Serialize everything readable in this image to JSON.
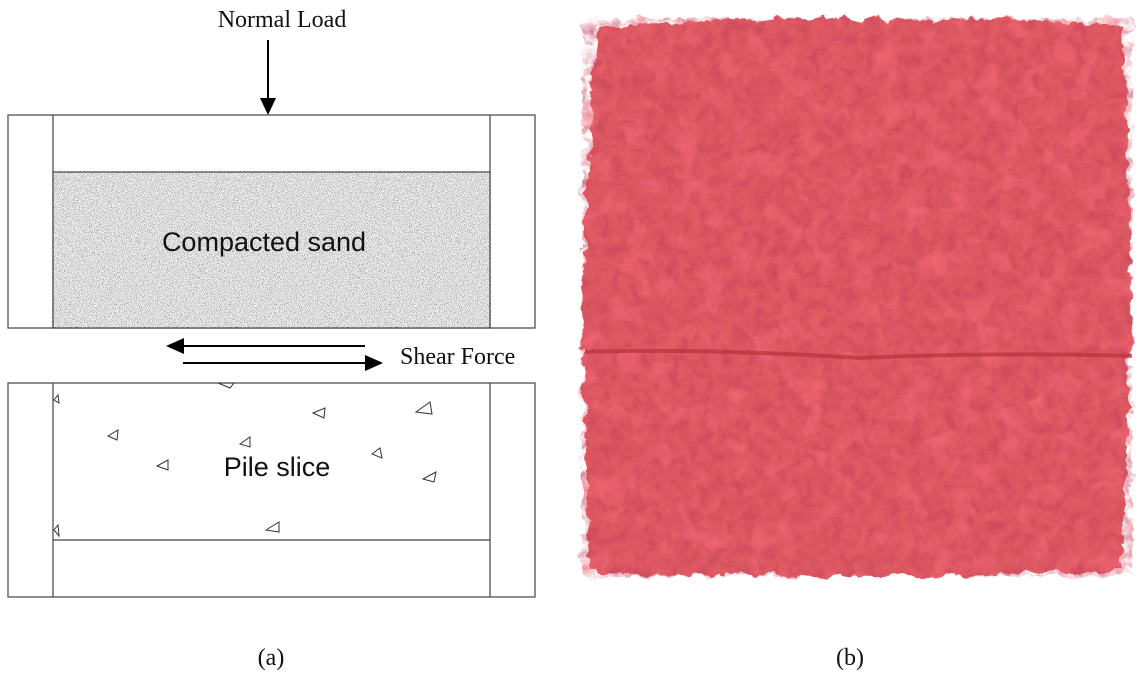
{
  "diagram": {
    "labels": {
      "normal_load": "Normal Load",
      "upper_material": "Compacted sand",
      "shear": "Shear Force",
      "lower_material": "Pile slice"
    }
  },
  "captions": {
    "a": "(a)",
    "b": "(b)"
  }
}
